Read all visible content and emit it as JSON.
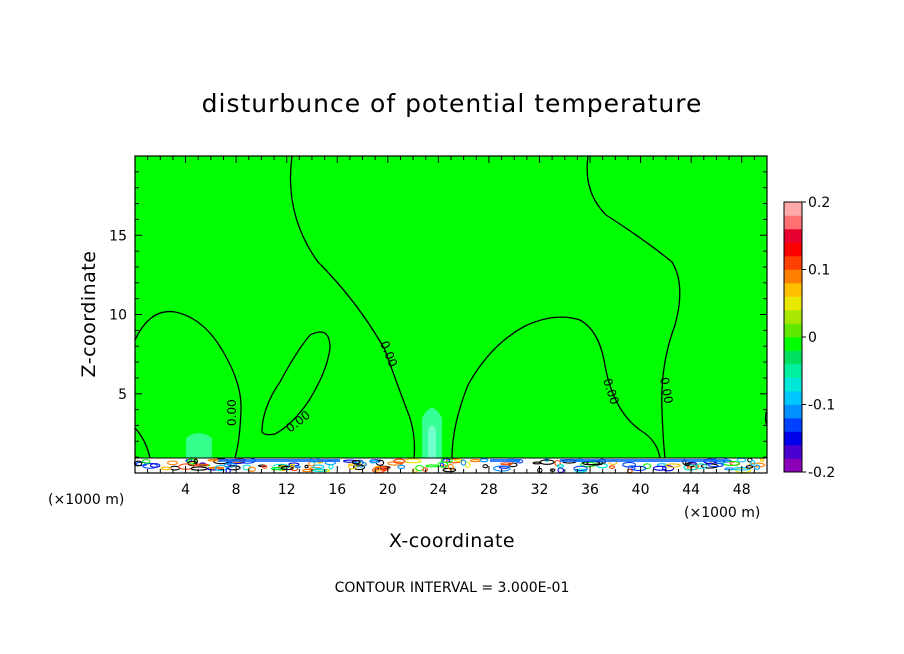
{
  "chart_data": {
    "type": "heatmap",
    "title": "disturbunce of potential temperature",
    "xlabel": "X-coordinate",
    "ylabel": "Z-coordinate",
    "x_unit": "(×1000 m)",
    "z_unit": "(×1000 m)",
    "xlim": [
      0,
      50
    ],
    "ylim": [
      0,
      20
    ],
    "x_ticks": [
      "4",
      "8",
      "12",
      "16",
      "20",
      "24",
      "28",
      "32",
      "36",
      "40",
      "44",
      "48"
    ],
    "y_ticks": [
      "5",
      "10",
      "15"
    ],
    "colorbar": {
      "range": [
        -0.2,
        0.2
      ],
      "tick_labels": [
        "0.2",
        "0.1",
        "0",
        "-0.1",
        "-0.2"
      ],
      "colors": [
        "#8b00b8",
        "#4a00d0",
        "#0000e8",
        "#0040ff",
        "#0090ff",
        "#00c8ff",
        "#00e8d8",
        "#00f0a0",
        "#00e060",
        "#00ff00",
        "#60e800",
        "#a8e800",
        "#e8e800",
        "#ffc000",
        "#ff8000",
        "#ff4000",
        "#ff0000",
        "#e80030",
        "#ff7070",
        "#ffa8a8"
      ]
    },
    "contour_labels": [
      "0.00",
      "0.00",
      "0.00",
      "0.00",
      "0.00"
    ],
    "contour_interval_text": "CONTOUR INTERVAL = 3.000E-01",
    "field_value": 0
  }
}
